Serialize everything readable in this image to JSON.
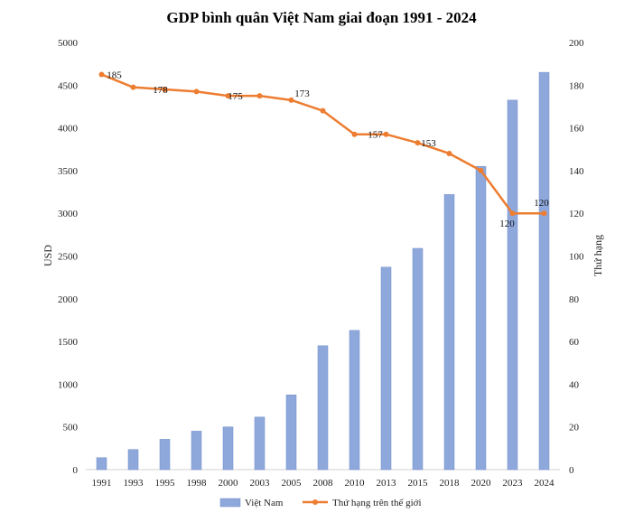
{
  "chart_data": {
    "type": "bar+line",
    "title": "GDP bình quân Việt Nam giai đoạn 1991 - 2024",
    "categories": [
      "1991",
      "1993",
      "1995",
      "1998",
      "2000",
      "2003",
      "2005",
      "2008",
      "2010",
      "2013",
      "2015",
      "2018",
      "2020",
      "2023",
      "2024"
    ],
    "ylabel_left": "USD",
    "ylabel_right": "Thứ hạng",
    "ylim_left": [
      0,
      5000
    ],
    "ylim_right": [
      0,
      200
    ],
    "yticks_left": [
      0,
      500,
      1000,
      1500,
      2000,
      2500,
      3000,
      3500,
      4000,
      4500,
      5000
    ],
    "yticks_right": [
      0,
      20,
      40,
      60,
      80,
      100,
      120,
      140,
      160,
      180,
      200
    ],
    "series": [
      {
        "name": "Việt Nam",
        "kind": "bar",
        "axis": "left",
        "color": "#8fa8dc",
        "values": [
          140,
          235,
          355,
          450,
          500,
          615,
          875,
          1450,
          1630,
          2370,
          2590,
          3220,
          3550,
          4325,
          4650
        ]
      },
      {
        "name": "Thứ hạng trên thế giới",
        "kind": "line",
        "axis": "right",
        "color": "#ed7d31",
        "values": [
          185,
          179,
          178,
          177,
          175,
          175,
          173,
          168,
          157,
          157,
          153,
          148,
          140,
          120,
          120
        ]
      }
    ],
    "data_labels": [
      {
        "index": 0,
        "text": "185"
      },
      {
        "index": 2,
        "text": "178"
      },
      {
        "index": 4,
        "text": "175"
      },
      {
        "index": 6,
        "text": "173"
      },
      {
        "index": 9,
        "text": "157"
      },
      {
        "index": 10,
        "text": "153"
      },
      {
        "index": 13,
        "text": "120"
      },
      {
        "index": 14,
        "text": "120"
      }
    ],
    "legend_position": "bottom",
    "grid": false
  }
}
